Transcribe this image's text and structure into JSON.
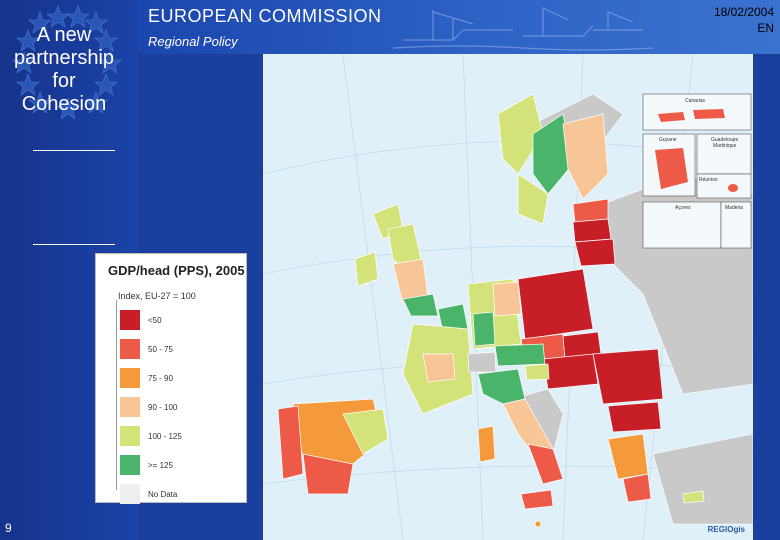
{
  "sidebar": {
    "tagline_lines": [
      "A new",
      "partnership",
      "for",
      "Cohesion"
    ],
    "page_number": "9"
  },
  "header": {
    "title": "EUROPEAN COMMISSION",
    "subtitle": "Regional Policy",
    "date": "18/02/2004",
    "lang": "EN"
  },
  "legend": {
    "title": "GDP/head (PPS), 2005",
    "subtitle": "Index, EU-27 = 100",
    "items": [
      {
        "label": "<50",
        "color": "#c81e28"
      },
      {
        "label": "50 - 75",
        "color": "#ee5a48"
      },
      {
        "label": "75 - 90",
        "color": "#f59a3a"
      },
      {
        "label": "90 - 100",
        "color": "#f8c596"
      },
      {
        "label": "100 - 125",
        "color": "#d4e27a"
      },
      {
        "label": ">= 125",
        "color": "#4ab46a"
      },
      {
        "label": "No Data",
        "color": "#eeeeee"
      }
    ]
  },
  "insets": {
    "canarias": "Canarias",
    "guyane": "Guyane",
    "guadeloupe": "Guadeloupe",
    "martinique": "Martinique",
    "reunion": "Réunion",
    "acores": "Açores",
    "madeira": "Madeira"
  },
  "map": {
    "sea_color": "#dff0f8",
    "non_eu_color": "#c9c9c9",
    "brand": "REGIOgis"
  }
}
